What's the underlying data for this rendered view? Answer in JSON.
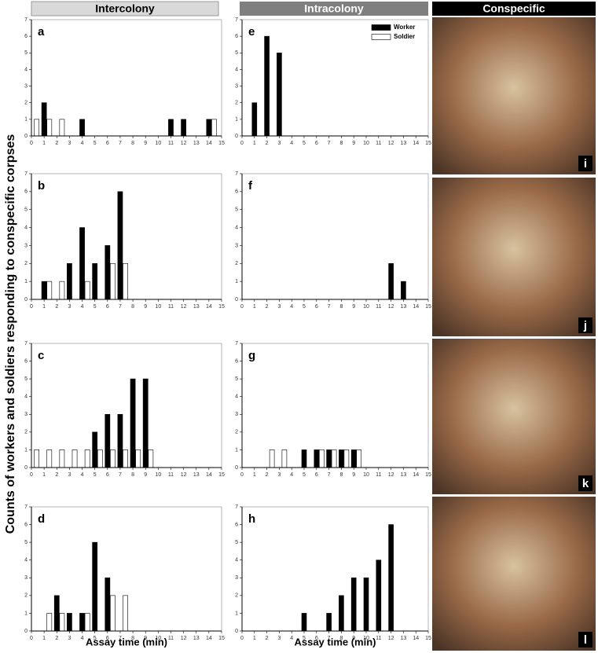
{
  "headers": [
    "Intercolony",
    "Intracolony",
    "Conspecific"
  ],
  "y_label": "Counts of workers and soldiers responding to conspecific corpses",
  "photos": [
    "i",
    "j",
    "k",
    "l"
  ],
  "chart_data": [
    {
      "type": "bar",
      "panel": "a",
      "x": [
        0,
        1,
        2,
        3,
        4,
        5,
        6,
        7,
        8,
        9,
        10,
        11,
        12,
        13,
        14,
        15
      ],
      "xlim": [
        0,
        15
      ],
      "ylim": [
        0,
        7
      ],
      "xticks": [
        0,
        1,
        2,
        3,
        4,
        5,
        6,
        7,
        8,
        9,
        10,
        11,
        12,
        13,
        14,
        15
      ],
      "yticks": [
        0,
        1,
        2,
        3,
        4,
        5,
        6,
        7
      ],
      "series": [
        {
          "name": "Worker",
          "color": "#000000",
          "values": [
            0,
            2,
            0,
            0,
            1,
            0,
            0,
            0,
            0,
            0,
            0,
            1,
            1,
            0,
            1,
            0
          ]
        },
        {
          "name": "Soldier",
          "color": "#ffffff",
          "values": [
            1,
            1,
            1,
            0,
            0,
            0,
            0,
            0,
            0,
            0,
            0,
            0,
            0,
            0,
            1,
            0
          ]
        }
      ]
    },
    {
      "type": "bar",
      "panel": "b",
      "x": [
        0,
        1,
        2,
        3,
        4,
        5,
        6,
        7,
        8,
        9,
        10,
        11,
        12,
        13,
        14,
        15
      ],
      "xlim": [
        0,
        15
      ],
      "ylim": [
        0,
        7
      ],
      "xticks": [
        0,
        1,
        2,
        3,
        4,
        5,
        6,
        7,
        8,
        9,
        10,
        11,
        12,
        13,
        14,
        15
      ],
      "yticks": [
        0,
        1,
        2,
        3,
        4,
        5,
        6,
        7
      ],
      "series": [
        {
          "name": "Worker",
          "color": "#000000",
          "values": [
            0,
            1,
            0,
            2,
            4,
            2,
            3,
            6,
            0,
            0,
            0,
            0,
            0,
            0,
            0,
            0
          ]
        },
        {
          "name": "Soldier",
          "color": "#ffffff",
          "values": [
            0,
            1,
            1,
            0,
            1,
            0,
            2,
            2,
            0,
            0,
            0,
            0,
            0,
            0,
            0,
            0
          ]
        }
      ]
    },
    {
      "type": "bar",
      "panel": "c",
      "x": [
        0,
        1,
        2,
        3,
        4,
        5,
        6,
        7,
        8,
        9,
        10,
        11,
        12,
        13,
        14,
        15
      ],
      "xlim": [
        0,
        15
      ],
      "ylim": [
        0,
        7
      ],
      "xticks": [
        0,
        1,
        2,
        3,
        4,
        5,
        6,
        7,
        8,
        9,
        10,
        11,
        12,
        13,
        14,
        15
      ],
      "yticks": [
        0,
        1,
        2,
        3,
        4,
        5,
        6,
        7
      ],
      "series": [
        {
          "name": "Worker",
          "color": "#000000",
          "values": [
            0,
            0,
            0,
            0,
            0,
            2,
            3,
            3,
            5,
            5,
            0,
            0,
            0,
            0,
            0,
            0
          ]
        },
        {
          "name": "Soldier",
          "color": "#ffffff",
          "values": [
            1,
            1,
            1,
            1,
            1,
            1,
            1,
            1,
            1,
            1,
            0,
            0,
            0,
            0,
            0,
            0
          ]
        }
      ]
    },
    {
      "type": "bar",
      "panel": "d",
      "xlabel": "Assay time (min)",
      "x": [
        0,
        1,
        2,
        3,
        4,
        5,
        6,
        7,
        8,
        9,
        10,
        11,
        12,
        13,
        14,
        15
      ],
      "xlim": [
        0,
        15
      ],
      "ylim": [
        0,
        7
      ],
      "xticks": [
        0,
        1,
        2,
        3,
        4,
        5,
        6,
        7,
        8,
        9,
        10,
        11,
        12,
        13,
        14,
        15
      ],
      "yticks": [
        0,
        1,
        2,
        3,
        4,
        5,
        6,
        7
      ],
      "series": [
        {
          "name": "Worker",
          "color": "#000000",
          "values": [
            0,
            0,
            2,
            1,
            1,
            5,
            3,
            0,
            0,
            0,
            0,
            0,
            0,
            0,
            0,
            0
          ]
        },
        {
          "name": "Soldier",
          "color": "#ffffff",
          "values": [
            0,
            1,
            1,
            0,
            1,
            0,
            2,
            2,
            0,
            0,
            0,
            0,
            0,
            0,
            0,
            0
          ]
        }
      ]
    },
    {
      "type": "bar",
      "panel": "e",
      "legend": true,
      "x": [
        0,
        1,
        2,
        3,
        4,
        5,
        6,
        7,
        8,
        9,
        10,
        11,
        12,
        13,
        14,
        15
      ],
      "xlim": [
        0,
        15
      ],
      "ylim": [
        0,
        7
      ],
      "xticks": [
        0,
        1,
        2,
        3,
        4,
        5,
        6,
        7,
        8,
        9,
        10,
        11,
        12,
        13,
        14,
        15
      ],
      "yticks": [
        0,
        1,
        2,
        3,
        4,
        5,
        6,
        7
      ],
      "series": [
        {
          "name": "Worker",
          "color": "#000000",
          "values": [
            0,
            2,
            6,
            5,
            0,
            0,
            0,
            0,
            0,
            0,
            0,
            0,
            0,
            0,
            0,
            0
          ]
        },
        {
          "name": "Soldier",
          "color": "#ffffff",
          "values": [
            0,
            0,
            0,
            0,
            0,
            0,
            0,
            0,
            0,
            0,
            0,
            0,
            0,
            0,
            0,
            0
          ]
        }
      ]
    },
    {
      "type": "bar",
      "panel": "f",
      "x": [
        0,
        1,
        2,
        3,
        4,
        5,
        6,
        7,
        8,
        9,
        10,
        11,
        12,
        13,
        14,
        15
      ],
      "xlim": [
        0,
        15
      ],
      "ylim": [
        0,
        7
      ],
      "xticks": [
        0,
        1,
        2,
        3,
        4,
        5,
        6,
        7,
        8,
        9,
        10,
        11,
        12,
        13,
        14,
        15
      ],
      "yticks": [
        0,
        1,
        2,
        3,
        4,
        5,
        6,
        7
      ],
      "series": [
        {
          "name": "Worker",
          "color": "#000000",
          "values": [
            0,
            0,
            0,
            0,
            0,
            0,
            0,
            0,
            0,
            0,
            0,
            0,
            2,
            1,
            0,
            0
          ]
        },
        {
          "name": "Soldier",
          "color": "#ffffff",
          "values": [
            0,
            0,
            0,
            0,
            0,
            0,
            0,
            0,
            0,
            0,
            0,
            0,
            0,
            0,
            0,
            0
          ]
        }
      ]
    },
    {
      "type": "bar",
      "panel": "g",
      "x": [
        0,
        1,
        2,
        3,
        4,
        5,
        6,
        7,
        8,
        9,
        10,
        11,
        12,
        13,
        14,
        15
      ],
      "xlim": [
        0,
        15
      ],
      "ylim": [
        0,
        7
      ],
      "xticks": [
        0,
        1,
        2,
        3,
        4,
        5,
        6,
        7,
        8,
        9,
        10,
        11,
        12,
        13,
        14,
        15
      ],
      "yticks": [
        0,
        1,
        2,
        3,
        4,
        5,
        6,
        7
      ],
      "series": [
        {
          "name": "Worker",
          "color": "#000000",
          "values": [
            0,
            0,
            0,
            0,
            0,
            1,
            1,
            1,
            1,
            1,
            0,
            0,
            0,
            0,
            0,
            0
          ]
        },
        {
          "name": "Soldier",
          "color": "#ffffff",
          "values": [
            0,
            0,
            1,
            1,
            0,
            0,
            1,
            1,
            1,
            1,
            0,
            0,
            0,
            0,
            0,
            0
          ]
        }
      ]
    },
    {
      "type": "bar",
      "panel": "h",
      "xlabel": "Assay time (min)",
      "x": [
        0,
        1,
        2,
        3,
        4,
        5,
        6,
        7,
        8,
        9,
        10,
        11,
        12,
        13,
        14,
        15
      ],
      "xlim": [
        0,
        15
      ],
      "ylim": [
        0,
        7
      ],
      "xticks": [
        0,
        1,
        2,
        3,
        4,
        5,
        6,
        7,
        8,
        9,
        10,
        11,
        12,
        13,
        14,
        15
      ],
      "yticks": [
        0,
        1,
        2,
        3,
        4,
        5,
        6,
        7
      ],
      "series": [
        {
          "name": "Worker",
          "color": "#000000",
          "values": [
            0,
            0,
            0,
            0,
            0,
            1,
            0,
            1,
            2,
            3,
            3,
            4,
            6,
            0,
            0,
            0
          ]
        },
        {
          "name": "Soldier",
          "color": "#ffffff",
          "values": [
            0,
            0,
            0,
            0,
            0,
            0,
            0,
            0,
            0,
            0,
            0,
            0,
            0,
            0,
            0,
            0
          ]
        }
      ]
    }
  ]
}
